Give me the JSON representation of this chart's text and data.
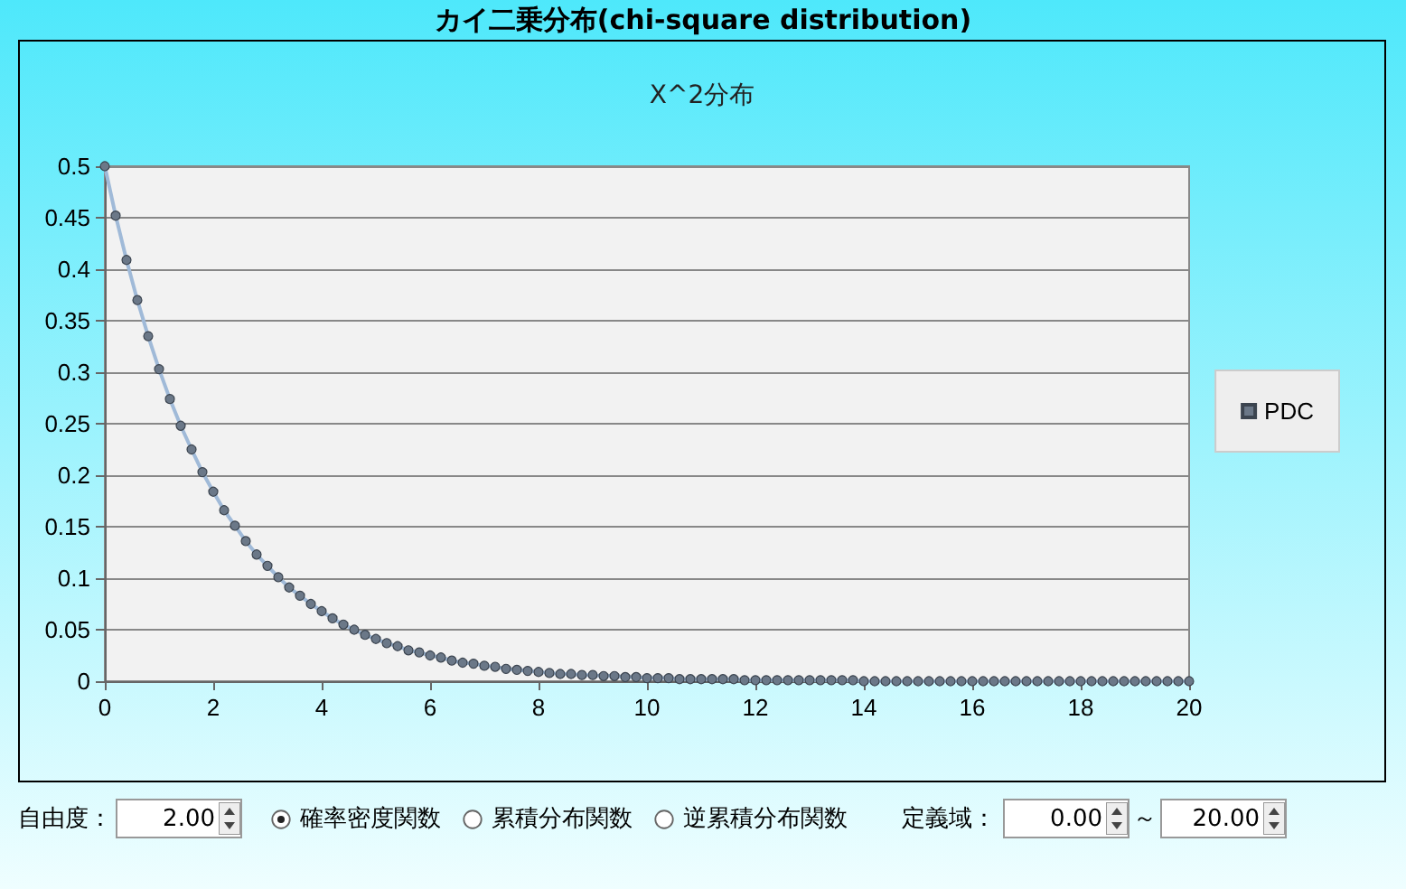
{
  "chart_data": {
    "type": "line",
    "title": "カイ二乗分布(chi-square distribution)",
    "subtitle": "X^2分布",
    "x": [
      0,
      0.2,
      0.4,
      0.6,
      0.8,
      1,
      1.2,
      1.4,
      1.6,
      1.8,
      2,
      2.2,
      2.4,
      2.6,
      2.8,
      3,
      3.2,
      3.4,
      3.6,
      3.8,
      4,
      4.2,
      4.4,
      4.6,
      4.8,
      5,
      5.2,
      5.4,
      5.6,
      5.8,
      6,
      6.2,
      6.4,
      6.6,
      6.8,
      7,
      7.2,
      7.4,
      7.6,
      7.8,
      8,
      8.2,
      8.4,
      8.6,
      8.8,
      9,
      9.2,
      9.4,
      9.6,
      9.8,
      10,
      10.2,
      10.4,
      10.6,
      10.8,
      11,
      11.2,
      11.4,
      11.6,
      11.8,
      12,
      12.2,
      12.4,
      12.6,
      12.8,
      13,
      13.2,
      13.4,
      13.6,
      13.8,
      14,
      14.2,
      14.4,
      14.6,
      14.8,
      15,
      15.2,
      15.4,
      15.6,
      15.8,
      16,
      16.2,
      16.4,
      16.6,
      16.8,
      17,
      17.2,
      17.4,
      17.6,
      17.8,
      18,
      18.2,
      18.4,
      18.6,
      18.8,
      19,
      19.2,
      19.4,
      19.6,
      19.8,
      20
    ],
    "series": [
      {
        "name": "PDC",
        "color": "#6b7888",
        "values": [
          0.5,
          0.452,
          0.409,
          0.37,
          0.335,
          0.303,
          0.274,
          0.248,
          0.225,
          0.203,
          0.184,
          0.166,
          0.151,
          0.136,
          0.123,
          0.112,
          0.101,
          0.091,
          0.083,
          0.075,
          0.068,
          0.061,
          0.055,
          0.05,
          0.045,
          0.041,
          0.037,
          0.034,
          0.03,
          0.028,
          0.025,
          0.023,
          0.02,
          0.018,
          0.017,
          0.015,
          0.014,
          0.012,
          0.011,
          0.01,
          0.009,
          0.008,
          0.007,
          0.007,
          0.006,
          0.006,
          0.005,
          0.005,
          0.004,
          0.004,
          0.003,
          0.003,
          0.003,
          0.002,
          0.002,
          0.002,
          0.002,
          0.002,
          0.002,
          0.001,
          0.001,
          0.001,
          0.001,
          0.001,
          0.001,
          0.001,
          0.001,
          0.001,
          0.001,
          0.001,
          0,
          0,
          0,
          0,
          0,
          0,
          0,
          0,
          0,
          0,
          0,
          0,
          0,
          0,
          0,
          0,
          0,
          0,
          0,
          0,
          0,
          0,
          0,
          0,
          0,
          0,
          0,
          0,
          0,
          0,
          0
        ]
      }
    ],
    "xlim": [
      0,
      20
    ],
    "xticks": [
      0,
      2,
      4,
      6,
      8,
      10,
      12,
      14,
      16,
      18,
      20
    ],
    "ylim": [
      0,
      0.5
    ],
    "yticks": [
      0,
      0.05,
      0.1,
      0.15,
      0.2,
      0.25,
      0.3,
      0.35,
      0.4,
      0.45,
      0.5
    ],
    "grid": "y",
    "legend": "right",
    "marker": "circle",
    "line_style": "solid",
    "annotations": [
      "自由度：",
      "2.00",
      "確率密度関数",
      "累積分布関数",
      "逆累積分布関数",
      "定義域：",
      "0.00",
      "～",
      "20.00"
    ]
  }
}
